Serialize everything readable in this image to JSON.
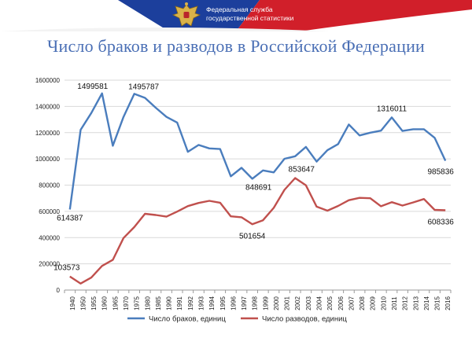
{
  "header": {
    "org_line1": "Федеральная служба",
    "org_line2": "государственной статистики",
    "emblem_icon": "double-headed-eagle-icon",
    "colors": {
      "white": "#ffffff",
      "blue": "#1c3f9c",
      "red": "#d11f2a"
    }
  },
  "chart_data": {
    "type": "line",
    "title": "Число браков и разводов в Российской Федерации",
    "categories": [
      "1940",
      "1950",
      "1955",
      "1960",
      "1965",
      "1970",
      "1975",
      "1980",
      "1985",
      "1990",
      "1991",
      "1992",
      "1993",
      "1994",
      "1995",
      "1996",
      "1997",
      "1998",
      "1999",
      "2000",
      "2001",
      "2002",
      "2003",
      "2004",
      "2005",
      "2006",
      "2007",
      "2008",
      "2009",
      "2010",
      "2011",
      "2012",
      "2013",
      "2014",
      "2015",
      "2016"
    ],
    "ylim": [
      0,
      1600000
    ],
    "yticks": [
      0,
      200000,
      400000,
      600000,
      800000,
      1000000,
      1200000,
      1400000,
      1600000
    ],
    "grid": true,
    "legend_position": "bottom",
    "series": [
      {
        "name": "Число браков, единиц",
        "color": "#4a7dbd",
        "values": [
          614387,
          1222000,
          1350000,
          1499581,
          1100000,
          1320000,
          1495787,
          1465000,
          1390000,
          1320000,
          1277000,
          1054000,
          1106000,
          1080000,
          1075000,
          867000,
          932000,
          848691,
          912000,
          897000,
          1001000,
          1020000,
          1091000,
          979000,
          1066000,
          1113000,
          1262000,
          1179000,
          1200000,
          1215000,
          1316011,
          1213000,
          1226000,
          1226000,
          1161000,
          985836
        ]
      },
      {
        "name": "Число разводов, единиц",
        "color": "#c0504d",
        "values": [
          103573,
          50000,
          95000,
          184000,
          230000,
          397000,
          480000,
          581000,
          572000,
          560000,
          598000,
          640000,
          664000,
          680000,
          666000,
          562000,
          555000,
          501654,
          532000,
          627000,
          764000,
          853647,
          798000,
          636000,
          605000,
          641000,
          685000,
          703000,
          700000,
          639000,
          670000,
          644000,
          668000,
          694000,
          611000,
          608336
        ]
      }
    ],
    "annotations": [
      {
        "series": 0,
        "category": "1940",
        "text": "614387"
      },
      {
        "series": 0,
        "category": "1960",
        "text": "1499581"
      },
      {
        "series": 0,
        "category": "1975",
        "text": "1495787"
      },
      {
        "series": 0,
        "category": "1998",
        "text": "848691"
      },
      {
        "series": 0,
        "category": "2011",
        "text": "1316011"
      },
      {
        "series": 0,
        "category": "2016",
        "text": "985836"
      },
      {
        "series": 1,
        "category": "1940",
        "text": "103573"
      },
      {
        "series": 1,
        "category": "1998",
        "text": "501654"
      },
      {
        "series": 1,
        "category": "2002",
        "text": "853647"
      },
      {
        "series": 1,
        "category": "2016",
        "text": "608336"
      }
    ]
  }
}
